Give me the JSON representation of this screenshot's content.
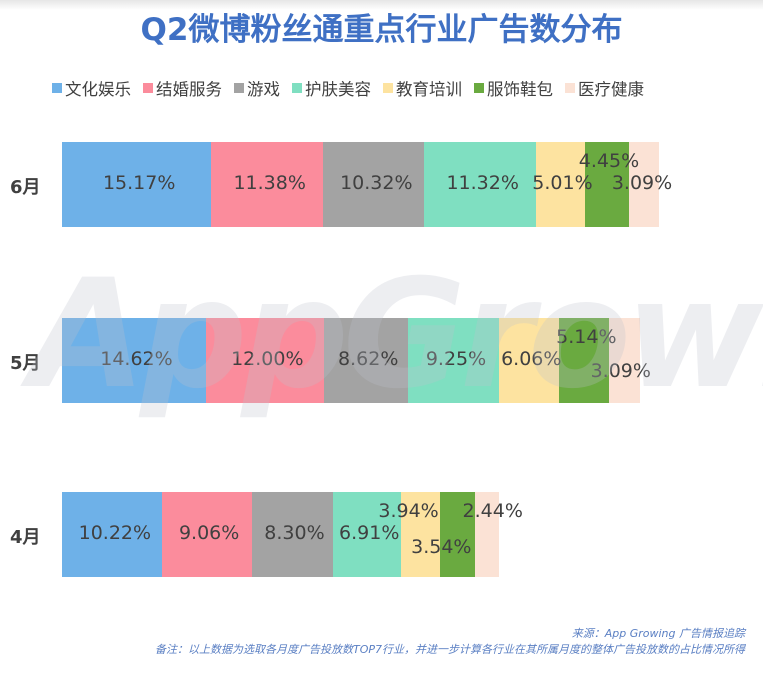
{
  "title": "Q2微博粉丝通重点行业广告数分布",
  "watermark": "AppGrowing",
  "legend": [
    {
      "label": "文化娱乐",
      "color": "#6eb1e8"
    },
    {
      "label": "结婚服务",
      "color": "#fb8c9c"
    },
    {
      "label": "游戏",
      "color": "#a3a3a3"
    },
    {
      "label": "护肤美容",
      "color": "#7fdfc1"
    },
    {
      "label": "教育培训",
      "color": "#fde3a0"
    },
    {
      "label": "服饰鞋包",
      "color": "#6aaa40"
    },
    {
      "label": "医疗健康",
      "color": "#fbe2d5"
    }
  ],
  "rows": [
    {
      "label": "6月",
      "labels": [
        "15.17%",
        "11.38%",
        "10.32%",
        "11.32%",
        "5.01%",
        "4.45%",
        "3.09%"
      ]
    },
    {
      "label": "5月",
      "labels": [
        "14.62%",
        "12.00%",
        "8.62%",
        "9.25%",
        "6.06%",
        "5.14%",
        "3.09%"
      ]
    },
    {
      "label": "4月",
      "labels": [
        "10.22%",
        "9.06%",
        "8.30%",
        "6.91%",
        "3.94%",
        "3.54%",
        "2.44%"
      ]
    }
  ],
  "footer": {
    "source": "来源：App Growing 广告情报追踪",
    "note": "备注：以上数据为选取各月度广告投放数TOP7行业，并进一步计算各行业在其所属月度的整体广告投放数的占比情况所得"
  },
  "chart_data": {
    "type": "bar",
    "orientation": "horizontal",
    "stacked": true,
    "title": "Q2微博粉丝通重点行业广告数分布",
    "categories": [
      "6月",
      "5月",
      "4月"
    ],
    "series": [
      {
        "name": "文化娱乐",
        "color": "#6eb1e8",
        "values": [
          15.17,
          14.62,
          10.22
        ]
      },
      {
        "name": "结婚服务",
        "color": "#fb8c9c",
        "values": [
          11.38,
          12.0,
          9.06
        ]
      },
      {
        "name": "游戏",
        "color": "#a3a3a3",
        "values": [
          10.32,
          8.62,
          8.3
        ]
      },
      {
        "name": "护肤美容",
        "color": "#7fdfc1",
        "values": [
          11.32,
          9.25,
          6.91
        ]
      },
      {
        "name": "教育培训",
        "color": "#fde3a0",
        "values": [
          5.01,
          6.06,
          3.94
        ]
      },
      {
        "name": "服饰鞋包",
        "color": "#6aaa40",
        "values": [
          4.45,
          5.14,
          3.54
        ]
      },
      {
        "name": "医疗健康",
        "color": "#fbe2d5",
        "values": [
          3.09,
          3.09,
          2.44
        ]
      }
    ],
    "xlabel": "",
    "ylabel": "",
    "unit": "%",
    "legend_position": "top",
    "grid": false,
    "source": "来源：App Growing 广告情报追踪",
    "note": "备注：以上数据为选取各月度广告投放数TOP7行业，并进一步计算各行业在其所属月度的整体广告投放数的占比情况所得"
  }
}
